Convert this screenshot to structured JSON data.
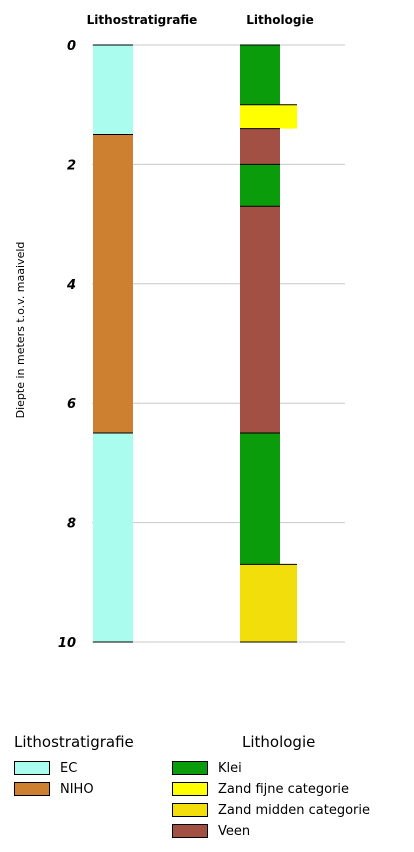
{
  "chart_data": {
    "type": "bar",
    "ylabel": "Diepte in meters t.o.v. maaiveld",
    "ylim": [
      0,
      10
    ],
    "y_ticks": [
      "0",
      "2",
      "4",
      "6",
      "8",
      "10"
    ],
    "columns": [
      {
        "name": "Lithostratigrafie",
        "layers": [
          {
            "unit": "EC",
            "top": 0,
            "bottom": 1.5
          },
          {
            "unit": "NIHO",
            "top": 1.5,
            "bottom": 6.5
          },
          {
            "unit": "EC",
            "top": 6.5,
            "bottom": 10
          }
        ]
      },
      {
        "name": "Lithologie",
        "layers": [
          {
            "unit": "Klei",
            "top": 0,
            "bottom": 1.0
          },
          {
            "unit": "Zand fijne categorie",
            "top": 1.0,
            "bottom": 1.4
          },
          {
            "unit": "Veen",
            "top": 1.4,
            "bottom": 2.0
          },
          {
            "unit": "Klei",
            "top": 2.0,
            "bottom": 2.7
          },
          {
            "unit": "Veen",
            "top": 2.7,
            "bottom": 6.5
          },
          {
            "unit": "Klei",
            "top": 6.5,
            "bottom": 8.7
          },
          {
            "unit": "Zand midden categorie",
            "top": 8.7,
            "bottom": 10
          }
        ]
      }
    ],
    "colors": {
      "EC": "#aafcef",
      "NIHO": "#cd8130",
      "Klei": "#0a9c0a",
      "Zand fijne categorie": "#ffff00",
      "Zand midden categorie": "#f2de0a",
      "Veen": "#a35044"
    },
    "widths": {
      "Klei": "narrow",
      "Veen": "narrow",
      "Zand fijne categorie": "wide",
      "Zand midden categorie": "wide"
    },
    "legends": [
      {
        "title": "Lithostratigrafie",
        "items": [
          "EC",
          "NIHO"
        ]
      },
      {
        "title": "Lithologie",
        "items": [
          "Klei",
          "Zand fijne categorie",
          "Zand midden categorie",
          "Veen"
        ]
      }
    ]
  }
}
